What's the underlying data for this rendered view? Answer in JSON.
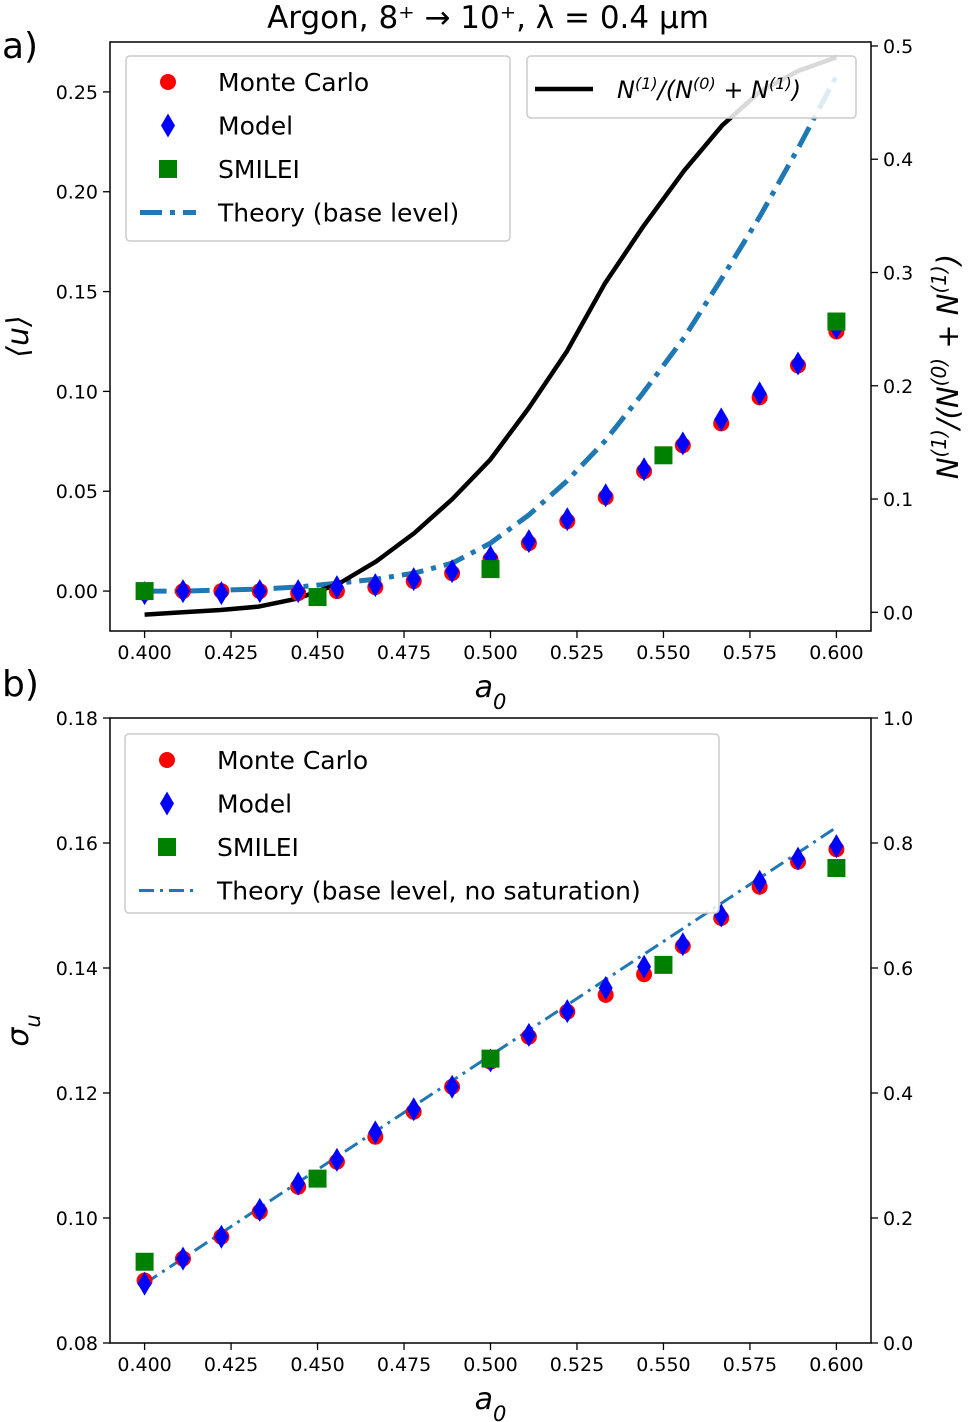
{
  "figure": {
    "title": "Argon, 8⁺ → 10⁺, λ = 0.4 µm"
  },
  "chart_data": [
    {
      "panel_label": "a)",
      "type": "scatter",
      "xlabel": "a0",
      "ylabel": "⟨u⟩",
      "y2label": "N(1)/(N(0) + N(1))",
      "xlim": [
        0.39,
        0.61
      ],
      "ylim": [
        -0.02,
        0.275
      ],
      "y2lim": [
        -0.0165,
        0.5035
      ],
      "xticks": [
        0.4,
        0.425,
        0.45,
        0.475,
        0.5,
        0.525,
        0.55,
        0.575,
        0.6
      ],
      "xtick_labels": [
        "0.400",
        "0.425",
        "0.450",
        "0.475",
        "0.500",
        "0.525",
        "0.550",
        "0.575",
        "0.600"
      ],
      "yticks": [
        0.0,
        0.05,
        0.1,
        0.15,
        0.2,
        0.25
      ],
      "ytick_labels": [
        "0.00",
        "0.05",
        "0.10",
        "0.15",
        "0.20",
        "0.25"
      ],
      "y2ticks": [
        0.0,
        0.1,
        0.2,
        0.3,
        0.4,
        0.5
      ],
      "y2tick_labels": [
        "0.0",
        "0.1",
        "0.2",
        "0.3",
        "0.4",
        "0.5"
      ],
      "grid": false,
      "legend_placement": "upper-left",
      "legend2_placement": "upper-right",
      "series": [
        {
          "name": "Monte Carlo",
          "kind": "markers",
          "marker": "circle",
          "color": "#ff0000",
          "x": [
            0.4,
            0.4111,
            0.4222,
            0.4333,
            0.4444,
            0.4556,
            0.4667,
            0.4778,
            0.4889,
            0.5,
            0.5111,
            0.5222,
            0.5333,
            0.5444,
            0.5556,
            0.5667,
            0.5778,
            0.5889,
            0.6
          ],
          "y": [
            -0.001,
            0.0,
            0.0,
            0.0,
            -0.001,
            0.0,
            0.002,
            0.005,
            0.009,
            0.016,
            0.024,
            0.035,
            0.047,
            0.06,
            0.073,
            0.084,
            0.097,
            0.113,
            0.13
          ]
        },
        {
          "name": "Model",
          "kind": "markers",
          "marker": "diamond",
          "color": "#0000ff",
          "x": [
            0.4,
            0.4111,
            0.4222,
            0.4333,
            0.4444,
            0.4556,
            0.4667,
            0.4778,
            0.4889,
            0.5,
            0.5111,
            0.5222,
            0.5333,
            0.5444,
            0.5556,
            0.5667,
            0.5778,
            0.5889,
            0.6
          ],
          "y": [
            -0.001,
            0.0,
            -0.001,
            0.0,
            0.0,
            0.002,
            0.003,
            0.006,
            0.01,
            0.017,
            0.025,
            0.036,
            0.048,
            0.061,
            0.074,
            0.086,
            0.099,
            0.114,
            0.132
          ]
        },
        {
          "name": "SMILEI",
          "kind": "markers",
          "marker": "square",
          "color": "#008000",
          "x": [
            0.4,
            0.45,
            0.5,
            0.55,
            0.6
          ],
          "y": [
            0.0,
            -0.003,
            0.011,
            0.068,
            0.135
          ]
        },
        {
          "name": "Theory (base level)",
          "kind": "line",
          "style": "dashdot",
          "color": "#1f77b4",
          "axis": "left",
          "x": [
            0.4,
            0.411,
            0.422,
            0.433,
            0.444,
            0.456,
            0.467,
            0.478,
            0.489,
            0.5,
            0.511,
            0.522,
            0.533,
            0.544,
            0.556,
            0.567,
            0.578,
            0.589,
            0.6
          ],
          "y": [
            0.0,
            0.0,
            0.0005,
            0.001,
            0.002,
            0.004,
            0.006,
            0.009,
            0.014,
            0.024,
            0.038,
            0.055,
            0.075,
            0.099,
            0.127,
            0.157,
            0.188,
            0.222,
            0.258
          ]
        },
        {
          "name": "N(1)/(N(0) + N(1))",
          "kind": "line",
          "style": "solid",
          "color": "#000000",
          "axis": "right",
          "x": [
            0.4,
            0.411,
            0.422,
            0.433,
            0.444,
            0.456,
            0.467,
            0.478,
            0.489,
            0.5,
            0.511,
            0.522,
            0.533,
            0.544,
            0.556,
            0.567,
            0.578,
            0.589,
            0.6
          ],
          "y": [
            -0.002,
            0.0,
            0.002,
            0.005,
            0.012,
            0.025,
            0.045,
            0.07,
            0.1,
            0.135,
            0.18,
            0.23,
            0.29,
            0.34,
            0.39,
            0.43,
            0.46,
            0.478,
            0.49
          ]
        }
      ]
    },
    {
      "panel_label": "b)",
      "type": "scatter",
      "xlabel": "a0",
      "ylabel": "σu",
      "xlim": [
        0.39,
        0.61
      ],
      "ylim": [
        0.08,
        0.18
      ],
      "y2lim": [
        0.0,
        1.0
      ],
      "xticks": [
        0.4,
        0.425,
        0.45,
        0.475,
        0.5,
        0.525,
        0.55,
        0.575,
        0.6
      ],
      "xtick_labels": [
        "0.400",
        "0.425",
        "0.450",
        "0.475",
        "0.500",
        "0.525",
        "0.550",
        "0.575",
        "0.600"
      ],
      "yticks": [
        0.08,
        0.1,
        0.12,
        0.14,
        0.16,
        0.18
      ],
      "ytick_labels": [
        "0.08",
        "0.10",
        "0.12",
        "0.14",
        "0.16",
        "0.18"
      ],
      "y2ticks": [
        0.0,
        0.2,
        0.4,
        0.6,
        0.8,
        1.0
      ],
      "y2tick_labels": [
        "0.0",
        "0.2",
        "0.4",
        "0.6",
        "0.8",
        "1.0"
      ],
      "grid": false,
      "legend_placement": "upper-left",
      "series": [
        {
          "name": "Monte Carlo",
          "kind": "markers",
          "marker": "circle",
          "color": "#ff0000",
          "x": [
            0.4,
            0.4111,
            0.4222,
            0.4333,
            0.4444,
            0.4556,
            0.4667,
            0.4778,
            0.4889,
            0.5,
            0.5111,
            0.5222,
            0.5333,
            0.5444,
            0.5556,
            0.5667,
            0.5778,
            0.5889,
            0.6
          ],
          "y": [
            0.09,
            0.0935,
            0.097,
            0.101,
            0.105,
            0.109,
            0.113,
            0.117,
            0.121,
            0.125,
            0.129,
            0.133,
            0.1357,
            0.139,
            0.1435,
            0.148,
            0.153,
            0.157,
            0.159
          ]
        },
        {
          "name": "Model",
          "kind": "markers",
          "marker": "diamond",
          "color": "#0000ff",
          "x": [
            0.4,
            0.4111,
            0.4222,
            0.4333,
            0.4444,
            0.4556,
            0.4667,
            0.4778,
            0.4889,
            0.5,
            0.5111,
            0.5222,
            0.5333,
            0.5444,
            0.5556,
            0.5667,
            0.5778,
            0.5889,
            0.6
          ],
          "y": [
            0.0895,
            0.0935,
            0.097,
            0.1013,
            0.1055,
            0.1093,
            0.1137,
            0.1174,
            0.121,
            0.1252,
            0.1293,
            0.1331,
            0.1368,
            0.1402,
            0.1438,
            0.1484,
            0.1538,
            0.1575,
            0.1595
          ]
        },
        {
          "name": "SMILEI",
          "kind": "markers",
          "marker": "square",
          "color": "#008000",
          "x": [
            0.4,
            0.45,
            0.5,
            0.55,
            0.6
          ],
          "y": [
            0.093,
            0.1063,
            0.1255,
            0.1405,
            0.156
          ]
        },
        {
          "name": "Theory (base level, no saturation)",
          "kind": "line",
          "style": "dashdot-thin",
          "color": "#1f77b4",
          "axis": "left",
          "x": [
            0.4,
            0.6
          ],
          "y": [
            0.0895,
            0.1625
          ]
        }
      ]
    }
  ]
}
